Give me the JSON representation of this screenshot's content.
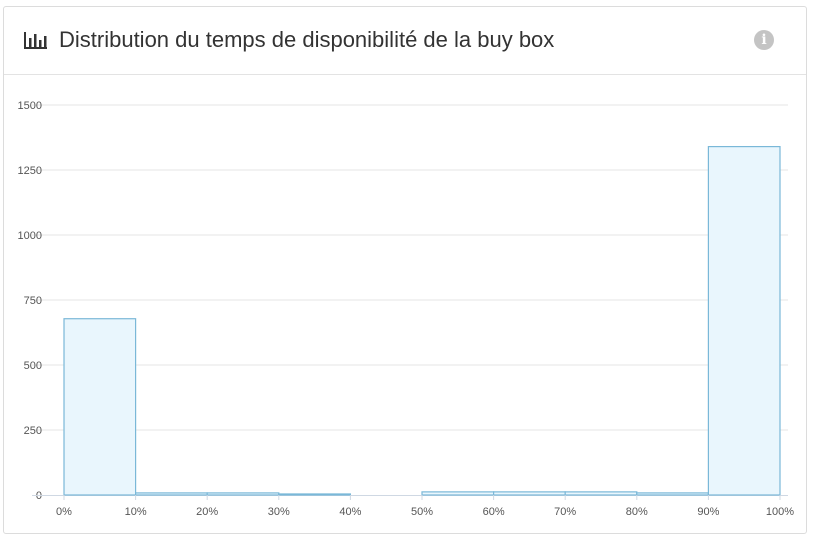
{
  "header": {
    "title": "Distribution du temps de disponibilité de la buy box",
    "chart_icon": "bar-chart-icon",
    "info_icon": "info-icon"
  },
  "chart_data": {
    "type": "bar",
    "title": "Distribution du temps de disponibilité de la buy box",
    "xlabel": "",
    "ylabel": "",
    "categories": [
      "0%-10%",
      "10%-20%",
      "20%-30%",
      "30%-40%",
      "40%-50%",
      "50%-60%",
      "60%-70%",
      "70%-80%",
      "80%-90%",
      "90%-100%"
    ],
    "values": [
      678,
      8,
      8,
      4,
      0,
      12,
      12,
      12,
      8,
      1340
    ],
    "x_tick_labels": [
      "0%",
      "10%",
      "20%",
      "30%",
      "40%",
      "50%",
      "60%",
      "70%",
      "80%",
      "90%",
      "100%"
    ],
    "y_ticks": [
      0,
      250,
      500,
      750,
      1000,
      1250,
      1500
    ],
    "ylim": [
      0,
      1500
    ],
    "grid": true,
    "bar_fill": "#e9f6fd",
    "bar_stroke": "#7ab8d8",
    "grid_color": "#e6e6e6"
  }
}
